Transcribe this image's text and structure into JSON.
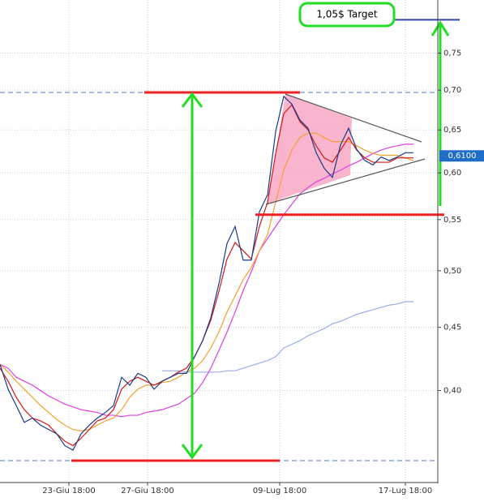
{
  "chart_data": {
    "type": "line",
    "log_scale": true,
    "grid": true,
    "x": [
      0,
      2,
      4,
      6,
      8,
      10,
      12,
      14,
      16,
      18,
      20,
      22,
      24,
      26,
      28,
      30,
      32,
      34,
      36,
      38,
      40,
      42,
      44,
      46,
      48,
      50,
      52,
      54,
      56,
      58,
      60,
      62,
      64,
      66,
      68,
      70,
      72,
      74,
      76,
      78,
      80,
      82,
      84,
      86,
      88,
      90,
      92,
      94,
      96,
      98,
      100,
      102
    ],
    "xlim": [
      0,
      108
    ],
    "xticks": [
      {
        "value": 17,
        "label": "23-Giu 18:00"
      },
      {
        "value": 36.4,
        "label": "27-Giu 18:00"
      },
      {
        "value": 69,
        "label": "09-Lug 18:00"
      },
      {
        "value": 100,
        "label": "17-Lug 18:00"
      }
    ],
    "ylim": [
      0.337,
      0.828
    ],
    "yticks": [
      {
        "value": 0.4,
        "label": "0,40"
      },
      {
        "value": 0.45,
        "label": "0,45"
      },
      {
        "value": 0.5,
        "label": "0,50"
      },
      {
        "value": 0.55,
        "label": "0,55"
      },
      {
        "value": 0.6,
        "label": "0,60"
      },
      {
        "value": 0.65,
        "label": "0,65"
      },
      {
        "value": 0.7,
        "label": "0,70"
      },
      {
        "value": 0.75,
        "label": "0,75"
      }
    ],
    "series": [
      {
        "color": "#9aaee8",
        "values": [
          null,
          null,
          null,
          null,
          null,
          null,
          null,
          null,
          null,
          null,
          null,
          null,
          null,
          null,
          null,
          null,
          null,
          null,
          null,
          null,
          0.415,
          0.415,
          0.415,
          0.414,
          0.414,
          0.414,
          0.414,
          0.414,
          0.415,
          0.415,
          0.417,
          0.419,
          0.421,
          0.423,
          0.426,
          0.433,
          0.436,
          0.439,
          0.443,
          0.446,
          0.449,
          0.453,
          0.455,
          0.458,
          0.461,
          0.463,
          0.465,
          0.467,
          0.469,
          0.47,
          0.472,
          0.472
        ]
      },
      {
        "color": "#e040e0",
        "values": [
          0.42,
          0.417,
          0.41,
          0.407,
          0.404,
          0.4,
          0.396,
          0.393,
          0.39,
          0.388,
          0.386,
          0.385,
          0.384,
          0.382,
          0.382,
          0.381,
          0.382,
          0.382,
          0.384,
          0.385,
          0.386,
          0.388,
          0.39,
          0.394,
          0.398,
          0.406,
          0.417,
          0.431,
          0.446,
          0.463,
          0.482,
          0.499,
          0.519,
          0.531,
          0.543,
          0.555,
          0.566,
          0.577,
          0.584,
          0.59,
          0.594,
          0.599,
          0.603,
          0.608,
          0.612,
          0.617,
          0.622,
          0.626,
          0.629,
          0.631,
          0.633,
          0.633
        ]
      },
      {
        "color": "#f5a030",
        "values": [
          0.42,
          0.414,
          0.407,
          0.401,
          0.395,
          0.389,
          0.384,
          0.379,
          0.375,
          0.372,
          0.371,
          0.372,
          0.375,
          0.378,
          0.38,
          0.386,
          0.395,
          0.401,
          0.404,
          0.404,
          0.406,
          0.407,
          0.41,
          0.414,
          0.417,
          0.423,
          0.433,
          0.446,
          0.463,
          0.477,
          0.492,
          0.503,
          0.519,
          0.535,
          0.568,
          0.603,
          0.626,
          0.641,
          0.646,
          0.646,
          0.641,
          0.636,
          0.636,
          0.636,
          0.631,
          0.626,
          0.622,
          0.62,
          0.62,
          0.62,
          0.617,
          0.614
        ]
      },
      {
        "color": "#d01818",
        "values": [
          0.417,
          0.407,
          0.395,
          0.386,
          0.38,
          0.378,
          0.375,
          0.369,
          0.364,
          0.361,
          0.366,
          0.372,
          0.378,
          0.38,
          0.386,
          0.401,
          0.407,
          0.41,
          0.407,
          0.404,
          0.407,
          0.41,
          0.414,
          0.417,
          0.426,
          0.439,
          0.456,
          0.481,
          0.511,
          0.527,
          0.519,
          0.511,
          0.543,
          0.568,
          0.622,
          0.67,
          0.681,
          0.66,
          0.65,
          0.631,
          0.617,
          0.612,
          0.626,
          0.641,
          0.626,
          0.617,
          0.612,
          0.612,
          0.612,
          0.617,
          0.617,
          0.617
        ]
      },
      {
        "color": "#1a3a8a",
        "values": [
          0.42,
          0.401,
          0.389,
          0.377,
          0.38,
          0.375,
          0.372,
          0.369,
          0.361,
          0.358,
          0.369,
          0.375,
          0.38,
          0.384,
          0.389,
          0.41,
          0.404,
          0.413,
          0.41,
          0.401,
          0.407,
          0.41,
          0.413,
          0.413,
          0.426,
          0.439,
          0.458,
          0.488,
          0.526,
          0.543,
          0.51,
          0.51,
          0.558,
          0.576,
          0.648,
          0.692,
          0.682,
          0.662,
          0.652,
          0.623,
          0.605,
          0.595,
          0.632,
          0.652,
          0.627,
          0.614,
          0.609,
          0.618,
          0.614,
          0.618,
          0.623,
          0.623
        ]
      }
    ],
    "dashed_levels": [
      0.697,
      0.351
    ],
    "levels": [
      0.697,
      0.555,
      0.351
    ],
    "target_level": 0.798,
    "target_label": "1,05$ Target",
    "last_price": {
      "value": 0.61,
      "label": "0,6100"
    }
  }
}
